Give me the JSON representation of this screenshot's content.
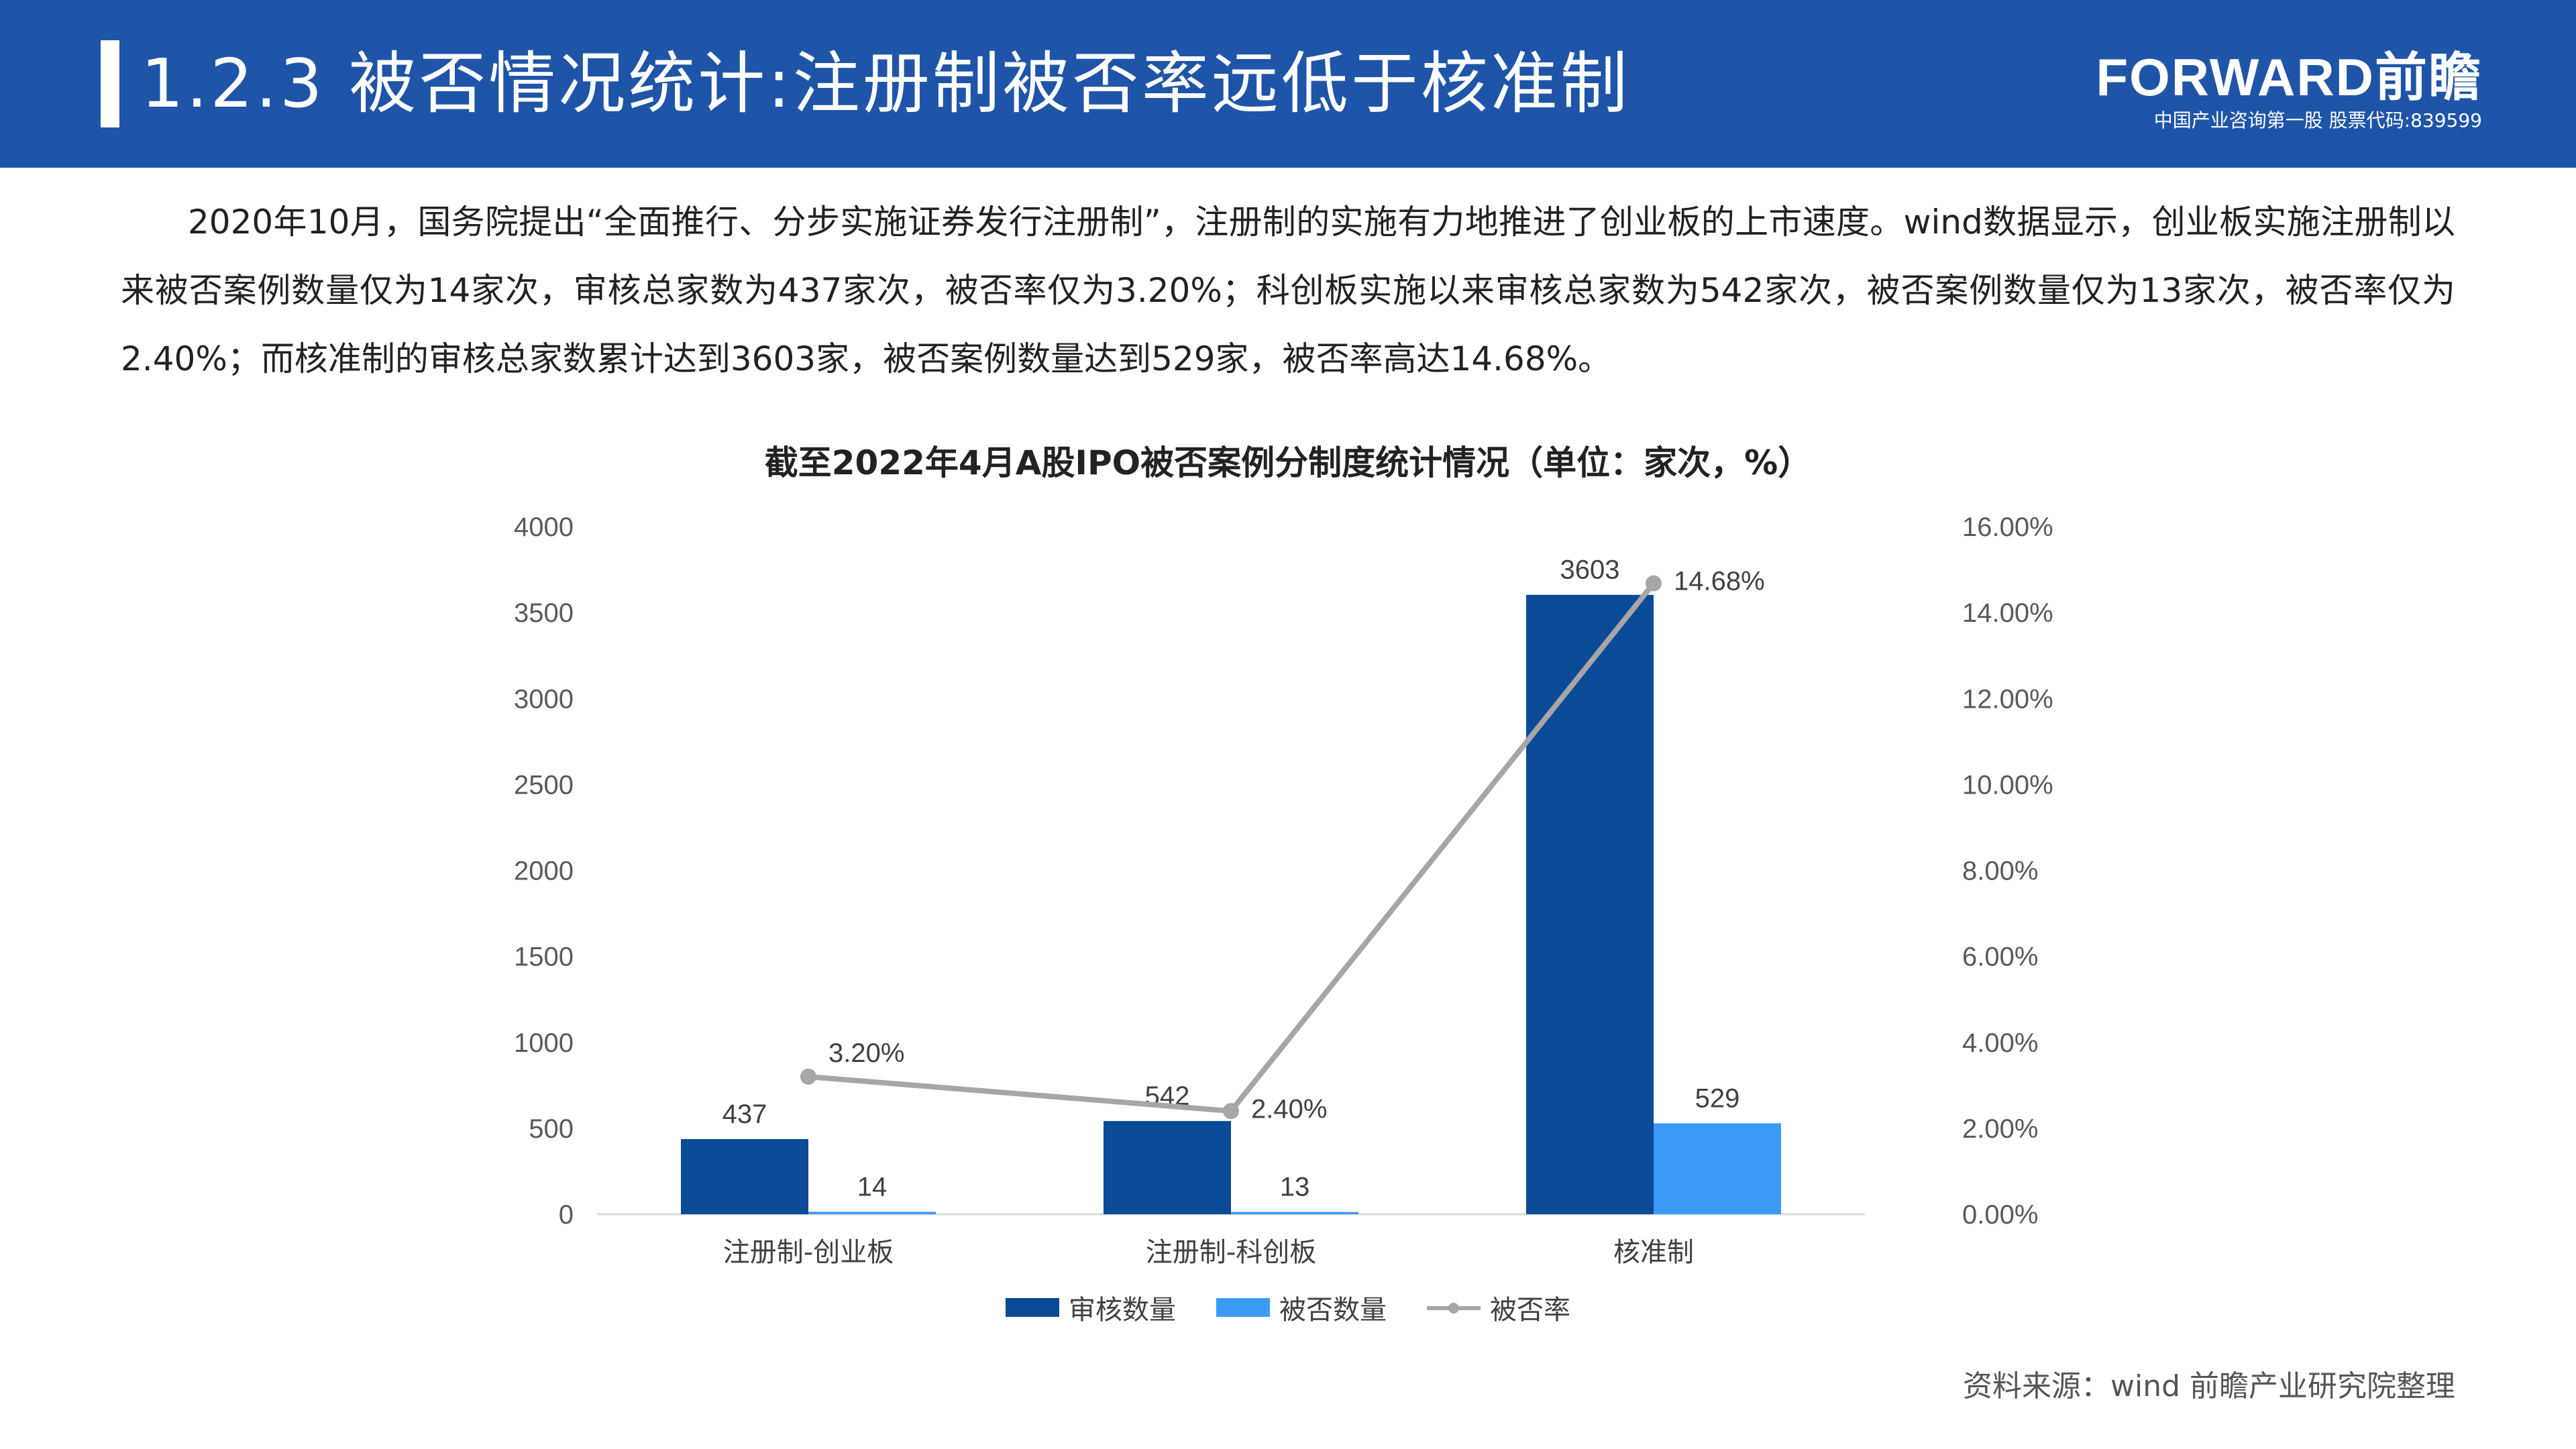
{
  "header": {
    "title": "1.2.3 被否情况统计:注册制被否率远低于核准制",
    "brand_logo": "FORWARD前瞻",
    "brand_sub": "中国产业咨询第一股 股票代码:839599"
  },
  "paragraph": "2020年10月，国务院提出“全面推行、分步实施证券发行注册制”，注册制的实施有力地推进了创业板的上市速度。wind数据显示，创业板实施注册制以来被否案例数量仅为14家次，审核总家数为437家次，被否率仅为3.20%；科创板实施以来审核总家数为542家次，被否案例数量仅为13家次，被否率仅为2.40%；而核准制的审核总家数累计达到3603家，被否案例数量达到529家，被否率高达14.68%。",
  "chart_data": {
    "type": "bar",
    "title": "截至2022年4月A股IPO被否案例分制度统计情况（单位：家次，%）",
    "categories": [
      "注册制-创业板",
      "注册制-科创板",
      "核准制"
    ],
    "series": [
      {
        "name": "审核数量",
        "type": "bar",
        "axis": "left",
        "color": "#0b4a97",
        "values": [
          437,
          542,
          3603
        ],
        "labels": [
          "437",
          "542",
          "3603"
        ]
      },
      {
        "name": "被否数量",
        "type": "bar",
        "axis": "left",
        "color": "#3a9bf5",
        "values": [
          14,
          13,
          529
        ],
        "labels": [
          "14",
          "13",
          "529"
        ]
      },
      {
        "name": "被否率",
        "type": "line",
        "axis": "right",
        "color": "#a6a6a6",
        "values": [
          3.2,
          2.4,
          14.68
        ],
        "labels": [
          "3.20%",
          "2.40%",
          "14.68%"
        ]
      }
    ],
    "y_left": {
      "min": 0,
      "max": 4000,
      "ticks": [
        "0",
        "500",
        "1000",
        "1500",
        "2000",
        "2500",
        "3000",
        "3500",
        "4000"
      ]
    },
    "y_right": {
      "min": 0,
      "max": 16,
      "ticks": [
        "0.00%",
        "2.00%",
        "4.00%",
        "6.00%",
        "8.00%",
        "10.00%",
        "12.00%",
        "14.00%",
        "16.00%"
      ]
    },
    "grid": false,
    "legend_position": "bottom"
  },
  "source": "资料来源：wind 前瞻产业研究院整理"
}
